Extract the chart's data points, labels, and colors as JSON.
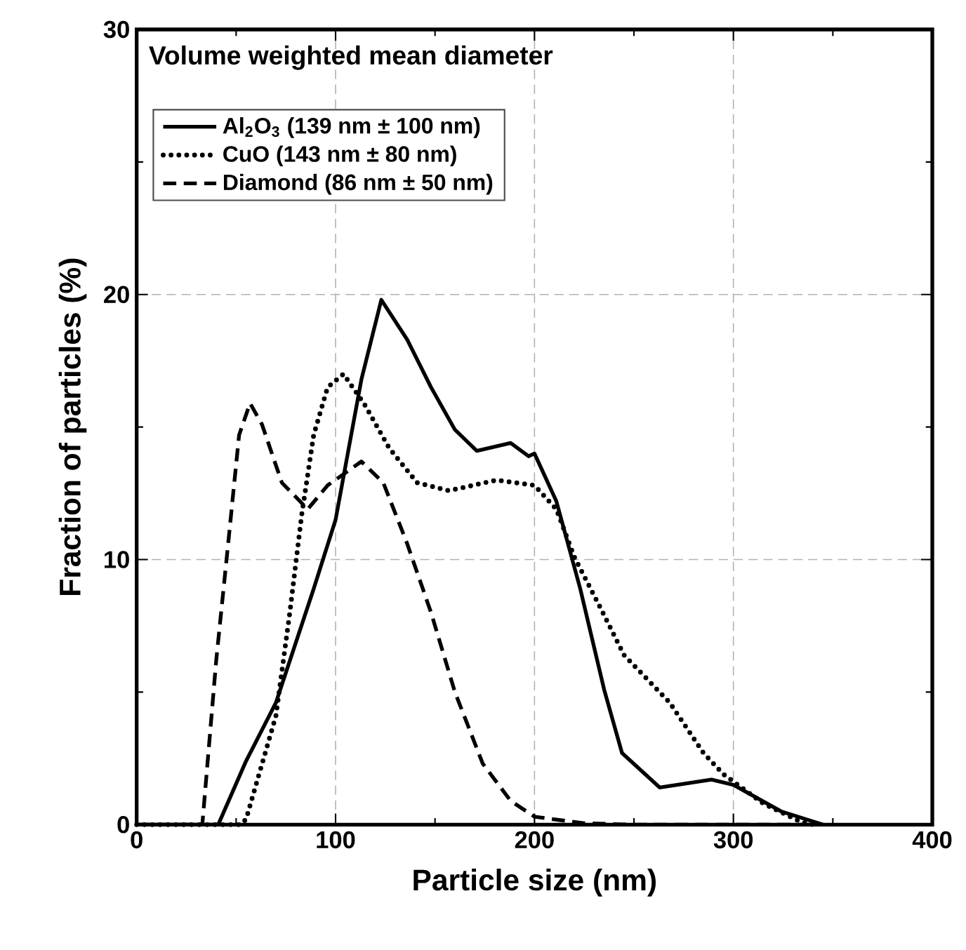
{
  "chart_data": {
    "type": "line",
    "xlabel": "Particle size (nm)",
    "ylabel": "Fraction of particles (%)",
    "legend_title": "Volume weighted mean diameter",
    "xlim": [
      0,
      400
    ],
    "ylim": [
      0,
      30
    ],
    "xticks": [
      0,
      100,
      200,
      300,
      400
    ],
    "yticks": [
      0,
      10,
      20,
      30
    ],
    "grid": true,
    "legend": "top left",
    "marker": "none",
    "series": [
      {
        "name": "Al$_{2}$O$_{3}$ (139 nm ± 100 nm)",
        "color": "#000000",
        "line_style": "solid",
        "x": [
          0,
          41,
          55,
          70,
          89,
          100,
          113,
          123,
          136,
          148,
          160,
          171,
          188,
          197,
          200,
          211,
          223,
          235,
          244,
          263,
          289,
          300,
          324,
          345
        ],
        "values": [
          0,
          0,
          2.4,
          4.6,
          8.9,
          11.5,
          16.8,
          19.8,
          18.3,
          16.5,
          14.9,
          14.1,
          14.4,
          13.9,
          14.0,
          12.2,
          8.9,
          5.1,
          2.7,
          1.4,
          1.7,
          1.5,
          0.5,
          0
        ]
      },
      {
        "name": "CuO (143 nm ± 80 nm)",
        "color": "#000000",
        "line_style": "dotted",
        "x": [
          0,
          52,
          55,
          70,
          77,
          83,
          89,
          96,
          104,
          115,
          127,
          141,
          157,
          181,
          200,
          211,
          220,
          233,
          245,
          268,
          285,
          295,
          315,
          334,
          340
        ],
        "values": [
          0,
          0,
          0.2,
          4.1,
          8.0,
          11.7,
          14.7,
          16.5,
          17.0,
          15.8,
          14.2,
          12.9,
          12.6,
          13.0,
          12.8,
          11.9,
          10.1,
          8.2,
          6.4,
          4.6,
          2.7,
          1.9,
          0.8,
          0.1,
          0
        ]
      },
      {
        "name": "Diamond (86 nm ± 50 nm)",
        "color": "#000000",
        "line_style": "dashed",
        "x": [
          0,
          33,
          40,
          46,
          51.5,
          57,
          63,
          73,
          86,
          96,
          113,
          124,
          136,
          148,
          160,
          174,
          188,
          200,
          225,
          250,
          345
        ],
        "values": [
          0,
          0,
          6.2,
          10.6,
          14.7,
          15.9,
          15.1,
          12.9,
          11.9,
          12.8,
          13.7,
          12.9,
          10.6,
          8.0,
          5.0,
          2.3,
          0.9,
          0.3,
          0.05,
          0,
          0
        ]
      }
    ]
  }
}
